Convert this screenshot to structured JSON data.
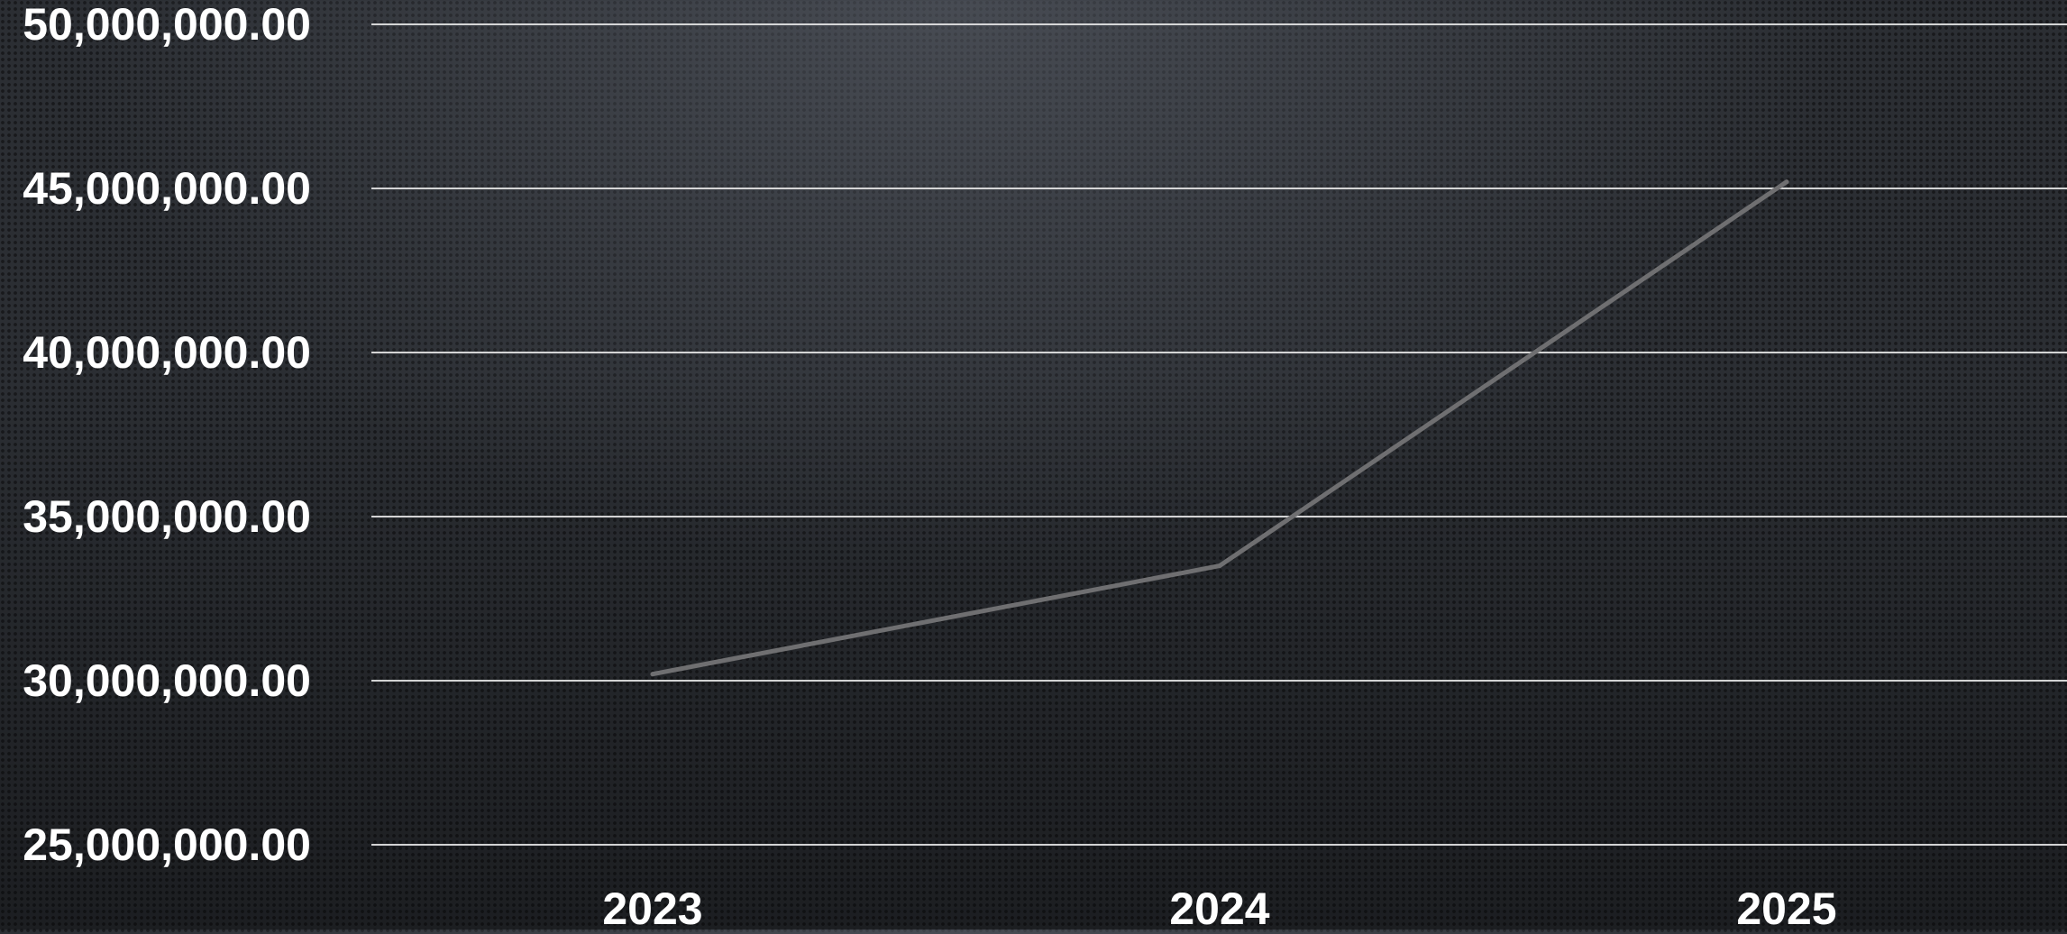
{
  "chart_data": {
    "type": "line",
    "x": [
      "2023",
      "2024",
      "2025"
    ],
    "series": [
      {
        "values": [
          30200000,
          33500000,
          45200000
        ]
      }
    ],
    "ylim": [
      25000000,
      50000000
    ],
    "y_ticks": [
      {
        "value": 50000000,
        "label": "50,000,000.00"
      },
      {
        "value": 45000000,
        "label": "45,000,000.00"
      },
      {
        "value": 40000000,
        "label": "40,000,000.00"
      },
      {
        "value": 35000000,
        "label": "35,000,000.00"
      },
      {
        "value": 30000000,
        "label": "30,000,000.00"
      },
      {
        "value": 25000000,
        "label": "25,000,000.00"
      }
    ],
    "x_ticks": [
      "2023",
      "2024",
      "2025"
    ],
    "title": "",
    "xlabel": "",
    "ylabel": "",
    "grid": "horizontal",
    "legend": "none",
    "colors": {
      "line": "#6f6f71",
      "grid": "#e6e6e6",
      "text": "#ffffff",
      "background": "#2b2e33"
    }
  }
}
